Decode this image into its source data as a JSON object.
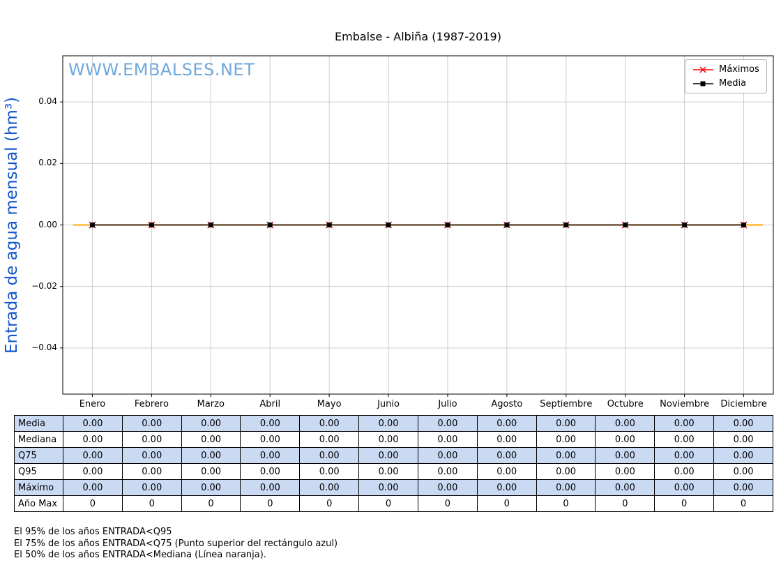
{
  "watermark": "WWW.EMBALSES.NET",
  "colors": {
    "watermark": "#6fa8dc",
    "ylabel": "#1155cc",
    "grid": "#cccccc",
    "axis": "#000000",
    "table_row_highlight": "#c9daf2",
    "mediana_line": "#ffa500",
    "maximos_line": "#ff0000",
    "media_line": "#000000"
  },
  "legend": {
    "items": [
      {
        "label": "Máximos",
        "color": "#ff0000",
        "marker": "x"
      },
      {
        "label": "Media",
        "color": "#000000",
        "marker": "square"
      }
    ]
  },
  "chart_data": {
    "type": "line",
    "title": "Embalse - Albiña (1987-2019)",
    "xlabel": "",
    "ylabel": "Entrada de agua mensual (hm³)",
    "categories": [
      "Enero",
      "Febrero",
      "Marzo",
      "Abril",
      "Mayo",
      "Junio",
      "Julio",
      "Agosto",
      "Septiembre",
      "Octubre",
      "Noviembre",
      "Diciembre"
    ],
    "series": [
      {
        "name": "Máximos",
        "color": "#ff0000",
        "marker": "x",
        "values": [
          0,
          0,
          0,
          0,
          0,
          0,
          0,
          0,
          0,
          0,
          0,
          0
        ]
      },
      {
        "name": "Media",
        "color": "#000000",
        "marker": "square",
        "values": [
          0,
          0,
          0,
          0,
          0,
          0,
          0,
          0,
          0,
          0,
          0,
          0
        ]
      },
      {
        "name": "Mediana",
        "color": "#ffa500",
        "marker": "none",
        "values": [
          0,
          0,
          0,
          0,
          0,
          0,
          0,
          0,
          0,
          0,
          0,
          0
        ]
      }
    ],
    "ylim": [
      -0.055,
      0.055
    ],
    "yticks": [
      {
        "value": 0.04,
        "label": "0.04"
      },
      {
        "value": 0.02,
        "label": "0.02"
      },
      {
        "value": 0.0,
        "label": "0.00"
      },
      {
        "value": -0.02,
        "label": "−0.02"
      },
      {
        "value": -0.04,
        "label": "−0.04"
      }
    ],
    "grid": true,
    "legend_position": "top-right"
  },
  "table": {
    "row_headers": [
      "Media",
      "Mediana",
      "Q75",
      "Q95",
      "Máximo",
      "Año Max"
    ],
    "rows": [
      [
        "0.00",
        "0.00",
        "0.00",
        "0.00",
        "0.00",
        "0.00",
        "0.00",
        "0.00",
        "0.00",
        "0.00",
        "0.00",
        "0.00"
      ],
      [
        "0.00",
        "0.00",
        "0.00",
        "0.00",
        "0.00",
        "0.00",
        "0.00",
        "0.00",
        "0.00",
        "0.00",
        "0.00",
        "0.00"
      ],
      [
        "0.00",
        "0.00",
        "0.00",
        "0.00",
        "0.00",
        "0.00",
        "0.00",
        "0.00",
        "0.00",
        "0.00",
        "0.00",
        "0.00"
      ],
      [
        "0.00",
        "0.00",
        "0.00",
        "0.00",
        "0.00",
        "0.00",
        "0.00",
        "0.00",
        "0.00",
        "0.00",
        "0.00",
        "0.00"
      ],
      [
        "0.00",
        "0.00",
        "0.00",
        "0.00",
        "0.00",
        "0.00",
        "0.00",
        "0.00",
        "0.00",
        "0.00",
        "0.00",
        "0.00"
      ],
      [
        "0",
        "0",
        "0",
        "0",
        "0",
        "0",
        "0",
        "0",
        "0",
        "0",
        "0",
        "0"
      ]
    ]
  },
  "footnotes": [
    "El 95% de los años ENTRADA<Q95",
    "El 75% de los años ENTRADA<Q75 (Punto superior del rectángulo azul)",
    "El 50% de los años ENTRADA<Mediana (Línea naranja)."
  ]
}
